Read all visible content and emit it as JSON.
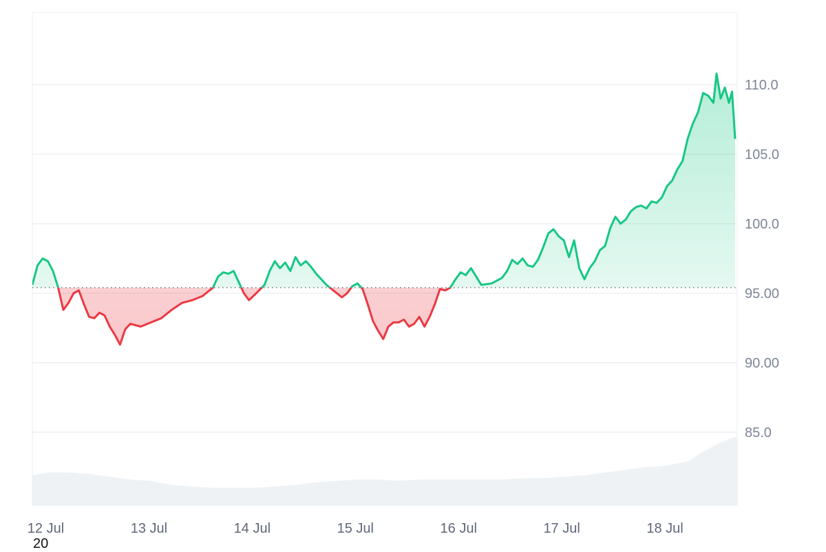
{
  "colors": {
    "up": "#16c784",
    "down": "#ea3943",
    "grid": "#e9ecf0",
    "volume": "#eff2f5",
    "baseline": "#6f7785"
  },
  "corner_note": "20",
  "chart_data": {
    "type": "line",
    "title": "",
    "xlabel": "",
    "ylabel": "",
    "x_tick_labels": [
      "12 Jul",
      "13 Jul",
      "14 Jul",
      "15 Jul",
      "16 Jul",
      "17 Jul",
      "18 Jul"
    ],
    "y_tick_labels": [
      "85.0",
      "90.00",
      "95.00",
      "100.0",
      "105.0",
      "110.0"
    ],
    "y_tick_values": [
      85,
      90,
      95,
      100,
      105,
      110
    ],
    "ylim": [
      79.7,
      115.2
    ],
    "xlim_days": [
      11.95,
      18.78
    ],
    "baseline": 95.4,
    "grid": true,
    "legend": "none",
    "price_series": {
      "name": "",
      "points": [
        [
          11.95,
          95.6
        ],
        [
          12.0,
          97.0
        ],
        [
          12.05,
          97.5
        ],
        [
          12.1,
          97.3
        ],
        [
          12.15,
          96.6
        ],
        [
          12.2,
          95.4
        ],
        [
          12.25,
          93.8
        ],
        [
          12.3,
          94.3
        ],
        [
          12.35,
          95.0
        ],
        [
          12.4,
          95.2
        ],
        [
          12.45,
          94.2
        ],
        [
          12.5,
          93.3
        ],
        [
          12.55,
          93.2
        ],
        [
          12.6,
          93.6
        ],
        [
          12.65,
          93.4
        ],
        [
          12.7,
          92.6
        ],
        [
          12.75,
          92.0
        ],
        [
          12.8,
          91.3
        ],
        [
          12.85,
          92.4
        ],
        [
          12.9,
          92.8
        ],
        [
          13.0,
          92.6
        ],
        [
          13.1,
          92.9
        ],
        [
          13.2,
          93.2
        ],
        [
          13.3,
          93.8
        ],
        [
          13.4,
          94.3
        ],
        [
          13.5,
          94.5
        ],
        [
          13.6,
          94.8
        ],
        [
          13.7,
          95.4
        ],
        [
          13.75,
          96.2
        ],
        [
          13.8,
          96.5
        ],
        [
          13.85,
          96.4
        ],
        [
          13.9,
          96.6
        ],
        [
          14.0,
          95.0
        ],
        [
          14.05,
          94.5
        ],
        [
          14.12,
          95.0
        ],
        [
          14.2,
          95.6
        ],
        [
          14.25,
          96.6
        ],
        [
          14.3,
          97.3
        ],
        [
          14.35,
          96.8
        ],
        [
          14.4,
          97.2
        ],
        [
          14.45,
          96.6
        ],
        [
          14.5,
          97.6
        ],
        [
          14.55,
          97.0
        ],
        [
          14.6,
          97.3
        ],
        [
          14.65,
          96.9
        ],
        [
          14.7,
          96.4
        ],
        [
          14.75,
          96.0
        ],
        [
          14.8,
          95.6
        ],
        [
          14.85,
          95.3
        ],
        [
          14.9,
          95.0
        ],
        [
          14.95,
          94.7
        ],
        [
          15.0,
          95.0
        ],
        [
          15.05,
          95.5
        ],
        [
          15.1,
          95.7
        ],
        [
          15.15,
          95.3
        ],
        [
          15.2,
          94.2
        ],
        [
          15.25,
          93.0
        ],
        [
          15.3,
          92.3
        ],
        [
          15.35,
          91.7
        ],
        [
          15.4,
          92.6
        ],
        [
          15.45,
          92.9
        ],
        [
          15.5,
          92.9
        ],
        [
          15.55,
          93.1
        ],
        [
          15.6,
          92.6
        ],
        [
          15.65,
          92.8
        ],
        [
          15.7,
          93.3
        ],
        [
          15.75,
          92.6
        ],
        [
          15.8,
          93.3
        ],
        [
          15.85,
          94.2
        ],
        [
          15.9,
          95.3
        ],
        [
          15.95,
          95.2
        ],
        [
          16.0,
          95.4
        ],
        [
          16.05,
          96.0
        ],
        [
          16.1,
          96.5
        ],
        [
          16.15,
          96.3
        ],
        [
          16.2,
          96.8
        ],
        [
          16.25,
          96.2
        ],
        [
          16.3,
          95.6
        ],
        [
          16.4,
          95.7
        ],
        [
          16.5,
          96.1
        ],
        [
          16.55,
          96.6
        ],
        [
          16.6,
          97.4
        ],
        [
          16.65,
          97.1
        ],
        [
          16.7,
          97.5
        ],
        [
          16.75,
          97.0
        ],
        [
          16.8,
          96.9
        ],
        [
          16.85,
          97.4
        ],
        [
          16.9,
          98.3
        ],
        [
          16.95,
          99.3
        ],
        [
          17.0,
          99.6
        ],
        [
          17.05,
          99.1
        ],
        [
          17.1,
          98.8
        ],
        [
          17.15,
          97.6
        ],
        [
          17.2,
          98.8
        ],
        [
          17.25,
          96.8
        ],
        [
          17.3,
          96.0
        ],
        [
          17.35,
          96.8
        ],
        [
          17.4,
          97.3
        ],
        [
          17.45,
          98.1
        ],
        [
          17.5,
          98.4
        ],
        [
          17.55,
          99.7
        ],
        [
          17.6,
          100.5
        ],
        [
          17.65,
          100.0
        ],
        [
          17.7,
          100.3
        ],
        [
          17.75,
          100.9
        ],
        [
          17.8,
          101.2
        ],
        [
          17.85,
          101.3
        ],
        [
          17.9,
          101.1
        ],
        [
          17.95,
          101.6
        ],
        [
          18.0,
          101.5
        ],
        [
          18.05,
          101.9
        ],
        [
          18.1,
          102.7
        ],
        [
          18.15,
          103.1
        ],
        [
          18.2,
          103.9
        ],
        [
          18.25,
          104.5
        ],
        [
          18.3,
          106.1
        ],
        [
          18.35,
          107.2
        ],
        [
          18.4,
          108.0
        ],
        [
          18.45,
          109.4
        ],
        [
          18.5,
          109.2
        ],
        [
          18.55,
          108.7
        ],
        [
          18.58,
          110.8
        ],
        [
          18.62,
          109.0
        ],
        [
          18.66,
          109.8
        ],
        [
          18.7,
          108.7
        ],
        [
          18.73,
          109.5
        ],
        [
          18.76,
          106.1
        ]
      ]
    },
    "volume_series": {
      "name": "",
      "points": [
        [
          11.95,
          81.9
        ],
        [
          12.1,
          82.1
        ],
        [
          12.3,
          82.1
        ],
        [
          12.5,
          82.0
        ],
        [
          12.7,
          81.8
        ],
        [
          12.9,
          81.6
        ],
        [
          13.1,
          81.5
        ],
        [
          13.3,
          81.2
        ],
        [
          13.5,
          81.1
        ],
        [
          13.7,
          81.0
        ],
        [
          13.9,
          81.0
        ],
        [
          14.1,
          81.0
        ],
        [
          14.3,
          81.1
        ],
        [
          14.5,
          81.2
        ],
        [
          14.7,
          81.4
        ],
        [
          14.9,
          81.5
        ],
        [
          15.1,
          81.6
        ],
        [
          15.3,
          81.6
        ],
        [
          15.5,
          81.5
        ],
        [
          15.7,
          81.6
        ],
        [
          15.9,
          81.6
        ],
        [
          16.1,
          81.6
        ],
        [
          16.3,
          81.6
        ],
        [
          16.5,
          81.6
        ],
        [
          16.7,
          81.7
        ],
        [
          16.9,
          81.7
        ],
        [
          17.1,
          81.8
        ],
        [
          17.3,
          81.9
        ],
        [
          17.5,
          82.1
        ],
        [
          17.7,
          82.3
        ],
        [
          17.9,
          82.5
        ],
        [
          18.1,
          82.6
        ],
        [
          18.3,
          82.9
        ],
        [
          18.45,
          83.6
        ],
        [
          18.6,
          84.2
        ],
        [
          18.7,
          84.5
        ],
        [
          18.78,
          84.7
        ]
      ]
    }
  }
}
